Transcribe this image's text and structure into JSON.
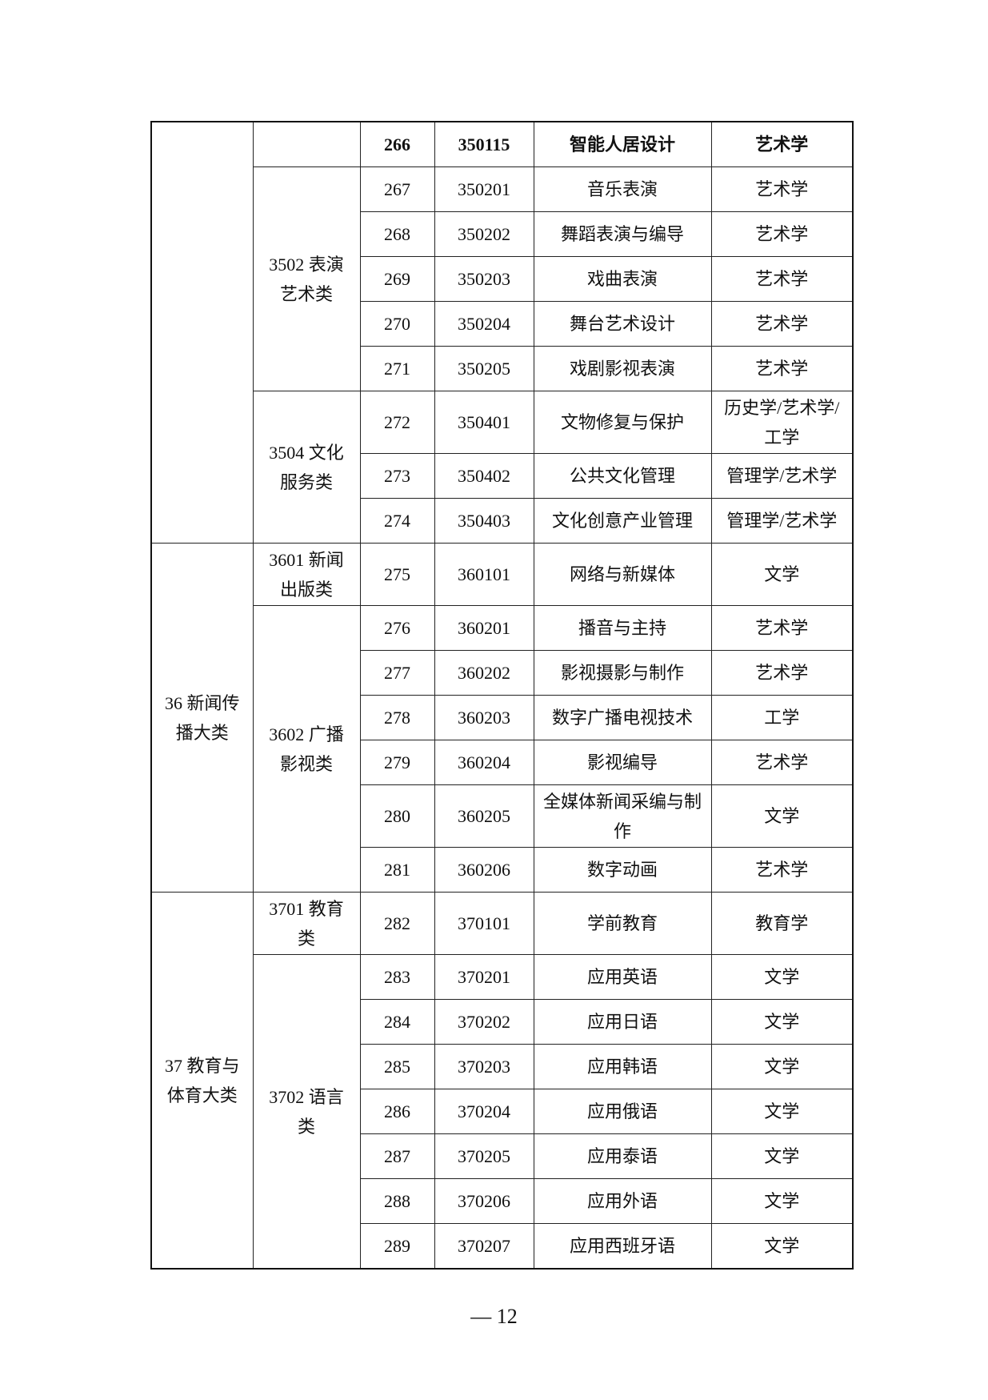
{
  "table": {
    "groups": [
      {
        "label": "",
        "rows": 9
      },
      {
        "label": "36 新闻传播大类",
        "rows": 7
      },
      {
        "label": "37 教育与体育大类",
        "rows": 8
      }
    ],
    "subgroups": [
      {
        "label": "",
        "rows": 1
      },
      {
        "label": "3502 表演艺术类",
        "rows": 5
      },
      {
        "label": "3504 文化服务类",
        "rows": 3
      },
      {
        "label": "3601 新闻出版类",
        "rows": 1
      },
      {
        "label": "3602 广播影视类",
        "rows": 6
      },
      {
        "label": "3701 教育类",
        "rows": 1
      },
      {
        "label": "3702 语言类",
        "rows": 7
      }
    ],
    "rows": [
      {
        "no": "266",
        "code": "350115",
        "name": "智能人居设计",
        "degree": "艺术学",
        "bold": true
      },
      {
        "no": "267",
        "code": "350201",
        "name": "音乐表演",
        "degree": "艺术学"
      },
      {
        "no": "268",
        "code": "350202",
        "name": "舞蹈表演与编导",
        "degree": "艺术学"
      },
      {
        "no": "269",
        "code": "350203",
        "name": "戏曲表演",
        "degree": "艺术学"
      },
      {
        "no": "270",
        "code": "350204",
        "name": "舞台艺术设计",
        "degree": "艺术学"
      },
      {
        "no": "271",
        "code": "350205",
        "name": "戏剧影视表演",
        "degree": "艺术学"
      },
      {
        "no": "272",
        "code": "350401",
        "name": "文物修复与保护",
        "degree": "历史学/艺术学/工学",
        "tall": true
      },
      {
        "no": "273",
        "code": "350402",
        "name": "公共文化管理",
        "degree": "管理学/艺术学"
      },
      {
        "no": "274",
        "code": "350403",
        "name": "文化创意产业管理",
        "degree": "管理学/艺术学"
      },
      {
        "no": "275",
        "code": "360101",
        "name": "网络与新媒体",
        "degree": "文学",
        "tall": true
      },
      {
        "no": "276",
        "code": "360201",
        "name": "播音与主持",
        "degree": "艺术学"
      },
      {
        "no": "277",
        "code": "360202",
        "name": "影视摄影与制作",
        "degree": "艺术学"
      },
      {
        "no": "278",
        "code": "360203",
        "name": "数字广播电视技术",
        "degree": "工学"
      },
      {
        "no": "279",
        "code": "360204",
        "name": "影视编导",
        "degree": "艺术学"
      },
      {
        "no": "280",
        "code": "360205",
        "name": "全媒体新闻采编与制作",
        "degree": "文学",
        "tall": true
      },
      {
        "no": "281",
        "code": "360206",
        "name": "数字动画",
        "degree": "艺术学"
      },
      {
        "no": "282",
        "code": "370101",
        "name": "学前教育",
        "degree": "教育学",
        "tall": true
      },
      {
        "no": "283",
        "code": "370201",
        "name": "应用英语",
        "degree": "文学"
      },
      {
        "no": "284",
        "code": "370202",
        "name": "应用日语",
        "degree": "文学"
      },
      {
        "no": "285",
        "code": "370203",
        "name": "应用韩语",
        "degree": "文学"
      },
      {
        "no": "286",
        "code": "370204",
        "name": "应用俄语",
        "degree": "文学"
      },
      {
        "no": "287",
        "code": "370205",
        "name": "应用泰语",
        "degree": "文学"
      },
      {
        "no": "288",
        "code": "370206",
        "name": "应用外语",
        "degree": "文学"
      },
      {
        "no": "289",
        "code": "370207",
        "name": "应用西班牙语",
        "degree": "文学"
      }
    ]
  },
  "page_number": "— 12"
}
